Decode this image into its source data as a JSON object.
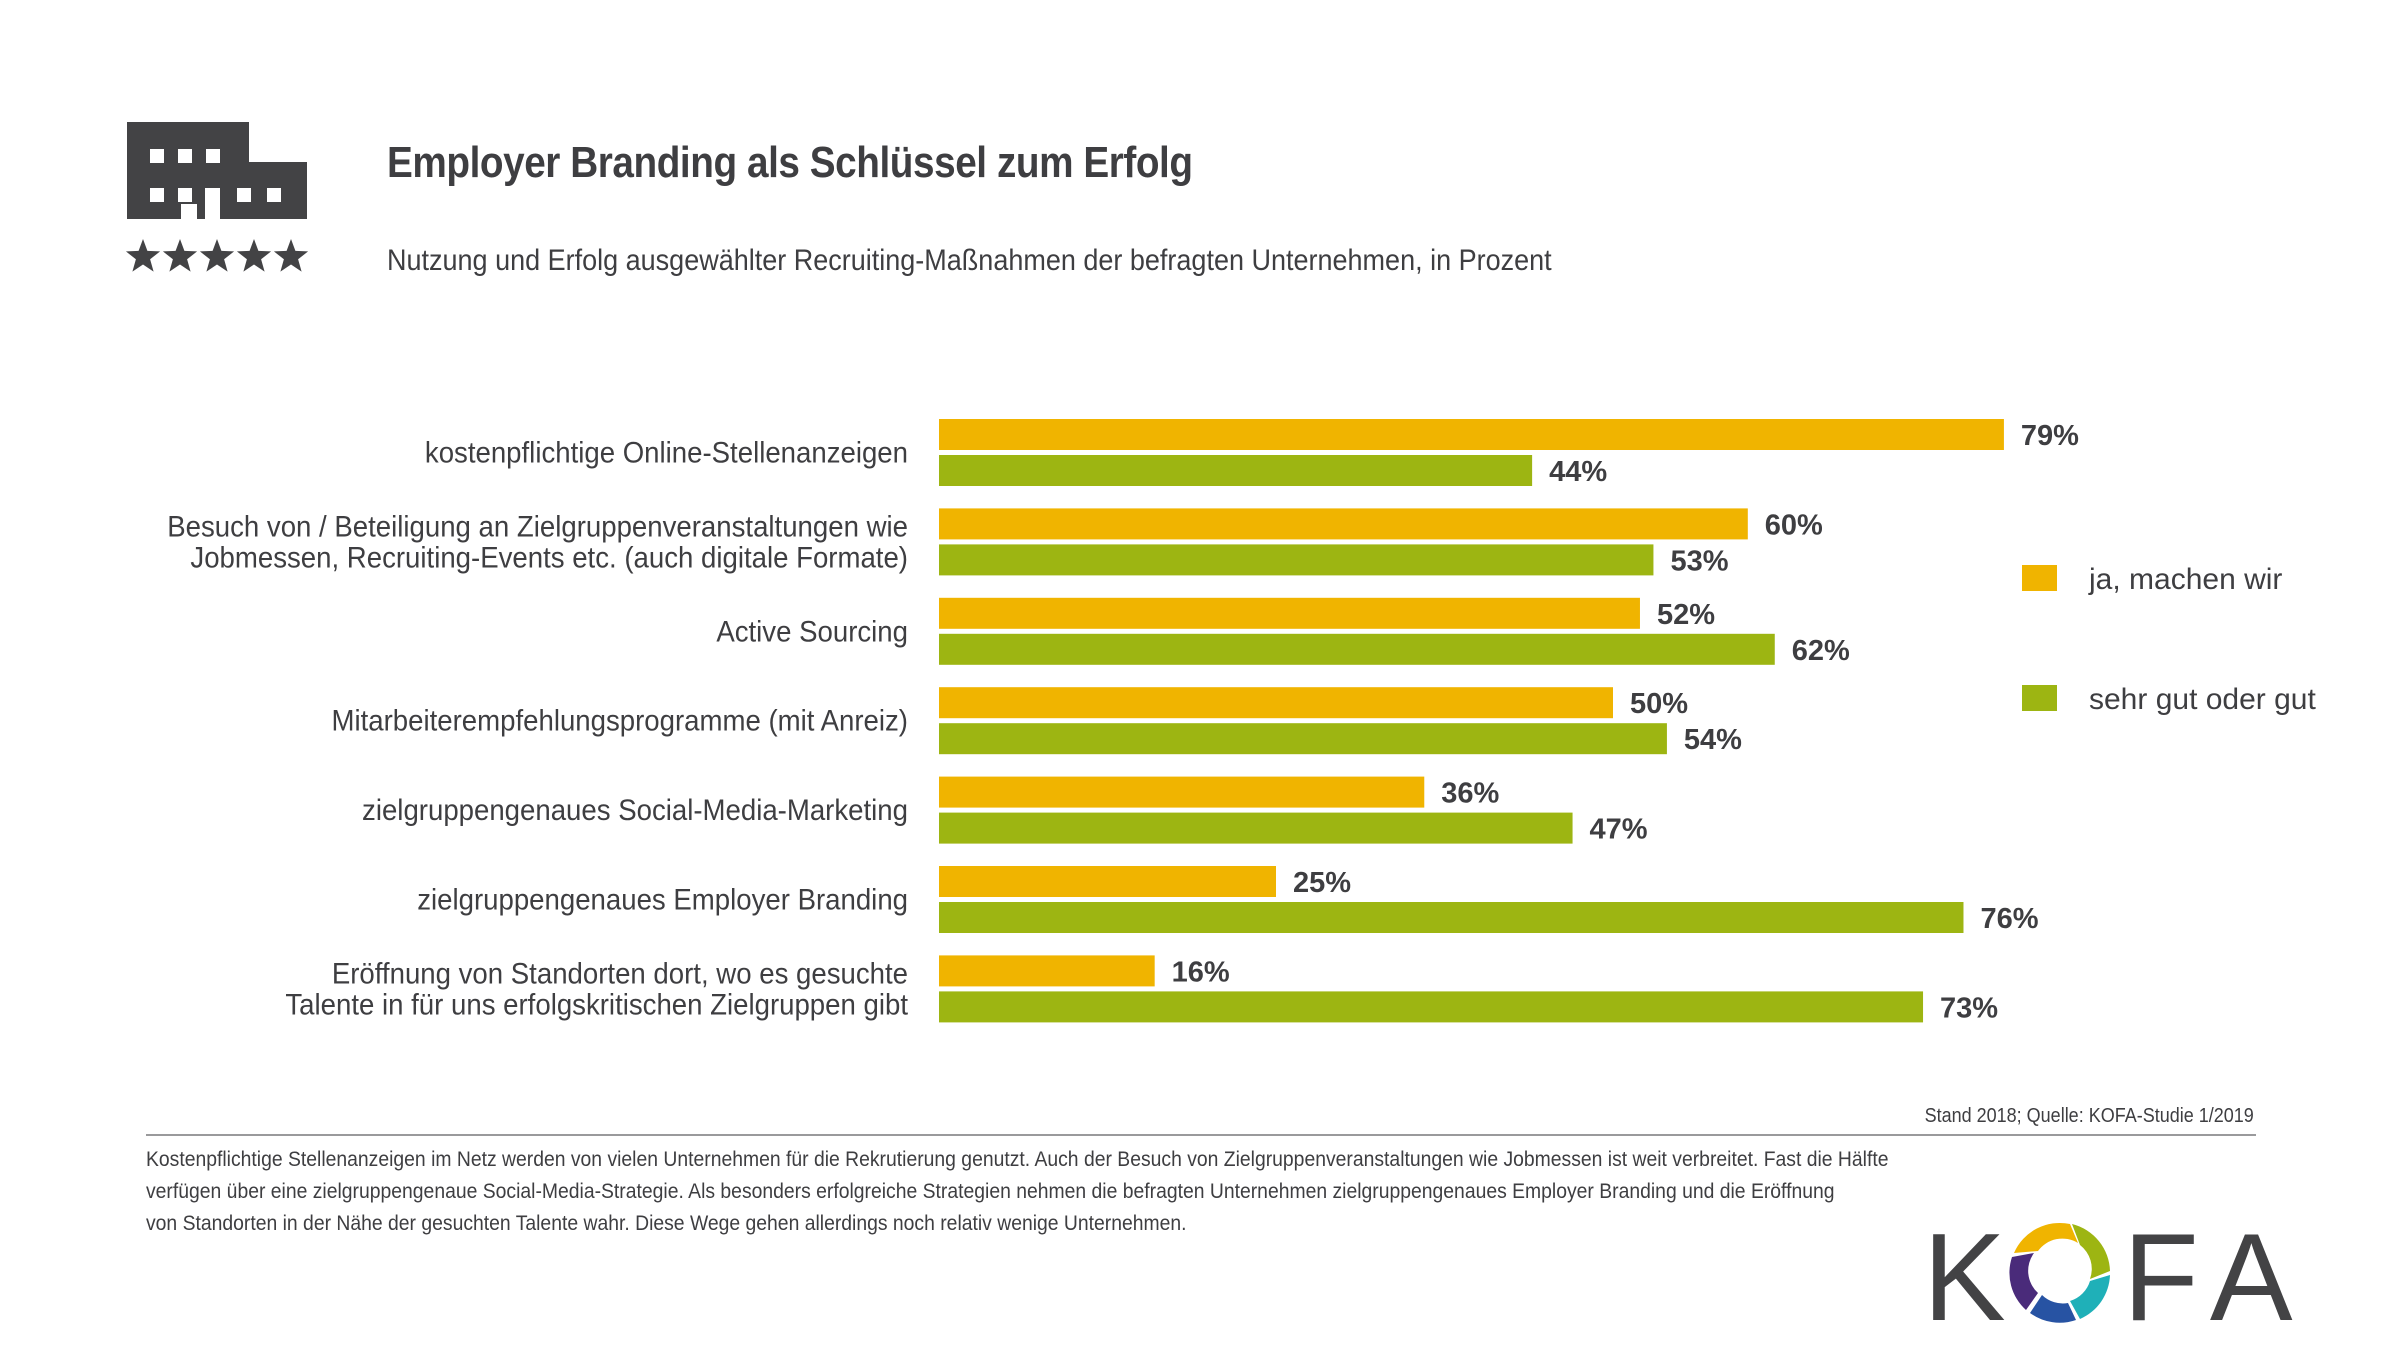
{
  "header": {
    "icon": "building-with-five-stars-icon",
    "title": "Employer Branding als Schlüssel zum Erfolg",
    "subtitle": "Nutzung und Erfolg ausgewählter Recruiting-Maßnahmen der befragten Unternehmen, in Prozent"
  },
  "colors": {
    "series_1": "#F0B400",
    "series_2": "#9DB512",
    "text": "#3E3E41",
    "icon": "#434345"
  },
  "chart_data": {
    "type": "bar",
    "orientation": "horizontal",
    "title": "Employer Branding als Schlüssel zum Erfolg",
    "subtitle": "Nutzung und Erfolg ausgewählter Recruiting-Maßnahmen der befragten Unternehmen, in Prozent",
    "xlabel": "",
    "ylabel": "",
    "xlim": [
      0,
      100
    ],
    "grid": false,
    "legend_position": "right",
    "unit": "%",
    "categories": [
      [
        "kostenpflichtige Online-Stellenanzeigen"
      ],
      [
        "Besuch von / Beteiligung an Zielgruppenveranstaltungen wie",
        "Jobmessen, Recruiting-Events etc. (auch digitale Formate)"
      ],
      [
        "Active Sourcing"
      ],
      [
        "Mitarbeiterempfehlungsprogramme (mit Anreiz)"
      ],
      [
        "zielgruppengenaues Social-Media-Marketing"
      ],
      [
        "zielgruppengenaues Employer Branding"
      ],
      [
        "Eröffnung von Standorten dort, wo es gesuchte",
        "Talente in für uns erfolgskritischen Zielgruppen gibt"
      ]
    ],
    "series": [
      {
        "name": "ja, machen wir",
        "color": "#F0B400",
        "values": [
          79,
          60,
          52,
          50,
          36,
          25,
          16
        ]
      },
      {
        "name": "sehr gut oder gut",
        "color": "#9DB512",
        "values": [
          44,
          53,
          62,
          54,
          47,
          76,
          73
        ]
      }
    ]
  },
  "footer": {
    "source": "Stand 2018; Quelle: KOFA-Studie 1/2019",
    "body_lines": [
      "Kostenpflichtige Stellenanzeigen im Netz werden von vielen Unternehmen für die Rekrutierung genutzt. Auch der Besuch von Zielgruppenveranstaltungen wie Jobmessen ist weit verbreitet. Fast die Hälfte",
      "verfügen über eine zielgruppengenaue Social-Media-Strategie. Als besonders erfolgreiche Strategien nehmen die befragten Unternehmen zielgruppengenaues Employer Branding und die Eröffnung",
      "von Standorten in der Nähe der gesuchten Talente wahr. Diese Wege gehen allerdings noch relativ wenige Unternehmen."
    ],
    "brand": {
      "left": "K",
      "right": "FA",
      "icon": "kofa-swirl-ring-icon"
    }
  }
}
